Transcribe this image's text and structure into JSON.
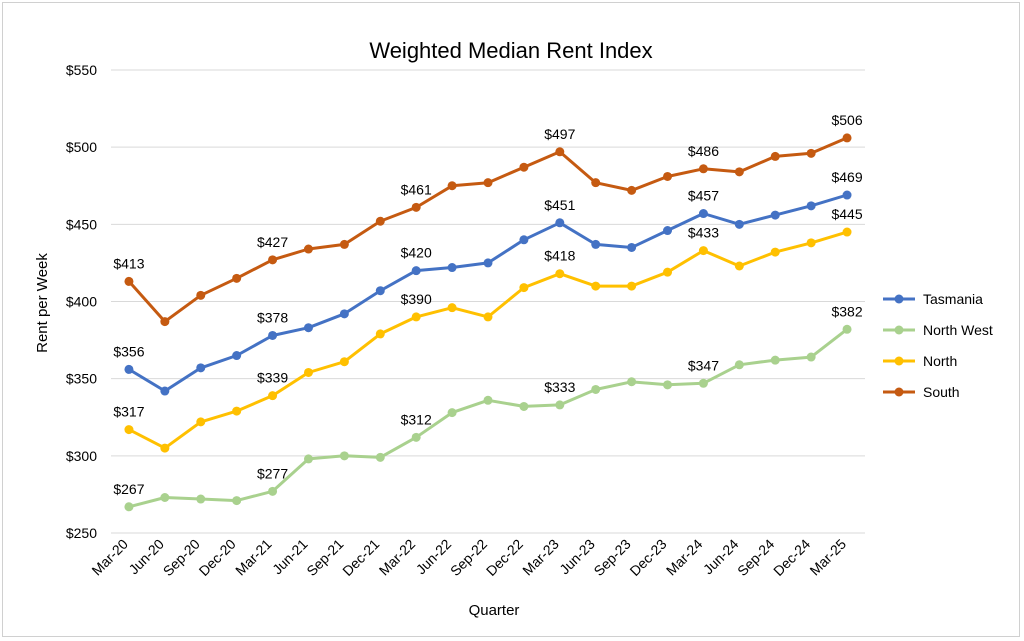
{
  "chart_data": {
    "type": "line",
    "title": "Weighted Median Rent Index",
    "xlabel": "Quarter",
    "ylabel": "Rent per Week",
    "ylim": [
      250,
      550
    ],
    "ytick_step": 50,
    "grid": true,
    "legend_position": "right",
    "categories": [
      "Mar-20",
      "Jun-20",
      "Sep-20",
      "Dec-20",
      "Mar-21",
      "Jun-21",
      "Sep-21",
      "Dec-21",
      "Mar-22",
      "Jun-22",
      "Sep-22",
      "Dec-22",
      "Mar-23",
      "Jun-23",
      "Sep-23",
      "Dec-23",
      "Mar-24",
      "Jun-24",
      "Sep-24",
      "Dec-24",
      "Mar-25"
    ],
    "series": [
      {
        "name": "Tasmania",
        "color": "#4472c4",
        "values": [
          356,
          342,
          357,
          365,
          378,
          383,
          392,
          407,
          420,
          422,
          425,
          440,
          451,
          437,
          435,
          446,
          457,
          450,
          456,
          462,
          469
        ],
        "label_indices": [
          0,
          4,
          8,
          12,
          16,
          20
        ]
      },
      {
        "name": "North West",
        "color": "#a9d18e",
        "values": [
          267,
          273,
          272,
          271,
          277,
          298,
          300,
          299,
          312,
          328,
          336,
          332,
          333,
          343,
          348,
          346,
          347,
          359,
          362,
          364,
          382
        ],
        "label_indices": [
          0,
          4,
          8,
          12,
          16,
          20
        ]
      },
      {
        "name": "North",
        "color": "#ffc000",
        "values": [
          317,
          305,
          322,
          329,
          339,
          354,
          361,
          379,
          390,
          396,
          390,
          409,
          418,
          410,
          410,
          419,
          433,
          423,
          432,
          438,
          445
        ],
        "label_indices": [
          0,
          4,
          8,
          12,
          16,
          20
        ]
      },
      {
        "name": "South",
        "color": "#c55a11",
        "values": [
          413,
          387,
          404,
          415,
          427,
          434,
          437,
          452,
          461,
          475,
          477,
          487,
          497,
          477,
          472,
          481,
          486,
          484,
          494,
          496,
          506
        ],
        "label_indices": [
          0,
          4,
          8,
          12,
          16,
          20
        ]
      }
    ]
  }
}
